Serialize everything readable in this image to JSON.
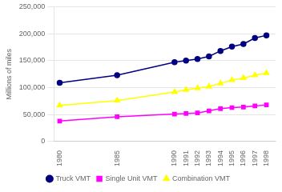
{
  "chart_data": {
    "type": "line",
    "x": [
      1980,
      1985,
      1990,
      1991,
      1992,
      1993,
      1994,
      1995,
      1996,
      1997,
      1998
    ],
    "series": [
      {
        "name": "Truck VMT",
        "color": "#000080",
        "marker": "circle",
        "values": [
          109000,
          123000,
          147000,
          150000,
          153000,
          158000,
          168000,
          176000,
          181000,
          192000,
          197000
        ]
      },
      {
        "name": "Single Unit VMT",
        "color": "#FF00FF",
        "marker": "square",
        "values": [
          38000,
          46000,
          51000,
          52000,
          53000,
          57000,
          61000,
          63000,
          64000,
          66000,
          68000
        ]
      },
      {
        "name": "Combination VMT",
        "color": "#FFFF00",
        "marker": "triangle",
        "values": [
          67000,
          76000,
          92000,
          96000,
          99000,
          102000,
          108000,
          114000,
          118000,
          123000,
          127000
        ]
      }
    ],
    "ylabel": "Millions of miles",
    "xlim": [
      1979.5,
      1998.8
    ],
    "xticks": [
      1980,
      1985,
      1990,
      1991,
      1992,
      1993,
      1994,
      1995,
      1996,
      1997,
      1998
    ],
    "ylim": [
      0,
      250000
    ],
    "yticks": [
      0,
      {
        "value": 50000,
        "label": "50,000"
      },
      {
        "value": 100000,
        "label": "100,000"
      },
      {
        "value": 150000,
        "label": "150,000"
      },
      {
        "value": 200000,
        "label": "200,000"
      },
      {
        "value": 250000,
        "label": "250,000"
      }
    ],
    "grid": "y",
    "legend": "bottom"
  }
}
